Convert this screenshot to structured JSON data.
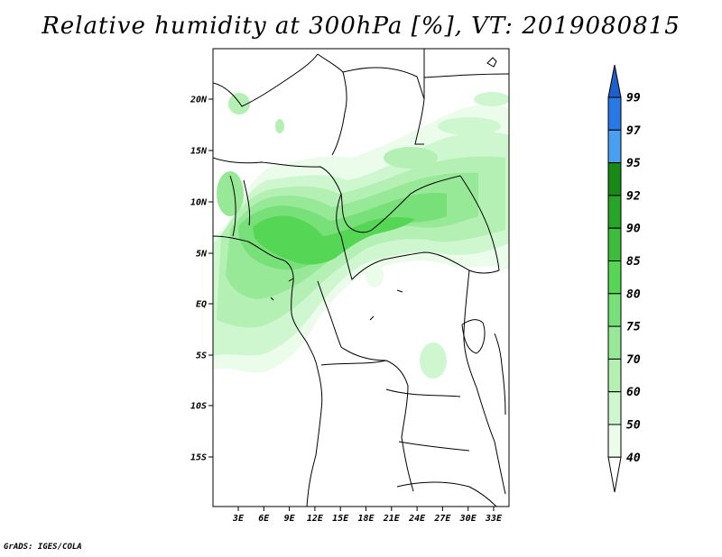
{
  "title": "Relative humidity at 300hPa [%], VT: 2019080815",
  "credit": "GrADS: IGES/COLA",
  "map": {
    "lat_ticks": [
      "20N",
      "15N",
      "10N",
      "5N",
      "EQ",
      "5S",
      "10S",
      "15S"
    ],
    "lon_ticks": [
      "3E",
      "6E",
      "9E",
      "12E",
      "15E",
      "18E",
      "21E",
      "24E",
      "27E",
      "30E",
      "33E"
    ]
  },
  "colorbar": {
    "levels": [
      "99",
      "97",
      "95",
      "92",
      "90",
      "85",
      "80",
      "75",
      "70",
      "60",
      "50",
      "40"
    ],
    "colors": [
      "#1e5fcc",
      "#2878e6",
      "#4aa0f0",
      "#178a17",
      "#26a526",
      "#3cbe3c",
      "#55d655",
      "#78e078",
      "#97e897",
      "#b4f0b4",
      "#cff7cf",
      "#ebfceb",
      "#ffffff"
    ]
  }
}
